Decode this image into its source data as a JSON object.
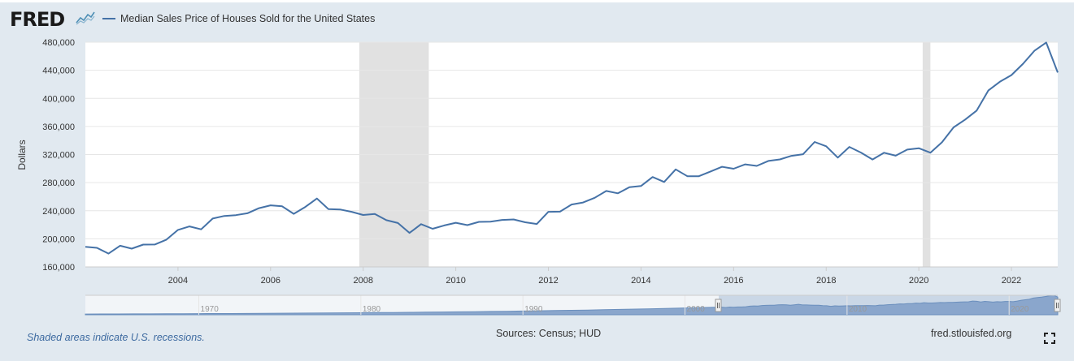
{
  "brand": {
    "logo_text": "FRED",
    "logo_icon": "fred-graph-icon"
  },
  "footer": {
    "note": "Shaded areas indicate U.S. recessions.",
    "sources": "Sources: Census; HUD",
    "site": "fred.stlouisfed.org",
    "expand_icon": "expand-fullscreen-icon"
  },
  "colors": {
    "line": "#4572a7",
    "recession": "#e1e1e1",
    "background": "#e1e9f0",
    "plot": "#ffffff",
    "grid": "#e6e6e6"
  },
  "chart_data": {
    "type": "line",
    "title": "",
    "xlabel": "",
    "ylabel": "Dollars",
    "legend": [
      "Median Sales Price of Houses Sold for the United States"
    ],
    "legend_position": "top-left",
    "grid": true,
    "xlim": [
      2002.0,
      2023.0
    ],
    "ylim": [
      160000,
      480000
    ],
    "xticks": [
      2004,
      2006,
      2008,
      2010,
      2012,
      2014,
      2016,
      2018,
      2020,
      2022
    ],
    "xtick_labels": [
      "2004",
      "2006",
      "2008",
      "2010",
      "2012",
      "2014",
      "2016",
      "2018",
      "2020",
      "2022"
    ],
    "yticks": [
      160000,
      200000,
      240000,
      280000,
      320000,
      360000,
      400000,
      440000,
      480000
    ],
    "ytick_labels": [
      "160,000",
      "200,000",
      "240,000",
      "280,000",
      "320,000",
      "360,000",
      "400,000",
      "440,000",
      "480,000"
    ],
    "recessions": [
      [
        2007.917,
        2009.417
      ],
      [
        2020.083,
        2020.25
      ]
    ],
    "series": [
      {
        "name": "Median Sales Price of Houses Sold for the United States",
        "x": [
          2002.0,
          2002.25,
          2002.5,
          2002.75,
          2003.0,
          2003.25,
          2003.5,
          2003.75,
          2004.0,
          2004.25,
          2004.5,
          2004.75,
          2005.0,
          2005.25,
          2005.5,
          2005.75,
          2006.0,
          2006.25,
          2006.5,
          2006.75,
          2007.0,
          2007.25,
          2007.5,
          2007.75,
          2008.0,
          2008.25,
          2008.5,
          2008.75,
          2009.0,
          2009.25,
          2009.5,
          2009.75,
          2010.0,
          2010.25,
          2010.5,
          2010.75,
          2011.0,
          2011.25,
          2011.5,
          2011.75,
          2012.0,
          2012.25,
          2012.5,
          2012.75,
          2013.0,
          2013.25,
          2013.5,
          2013.75,
          2014.0,
          2014.25,
          2014.5,
          2014.75,
          2015.0,
          2015.25,
          2015.5,
          2015.75,
          2016.0,
          2016.25,
          2016.5,
          2016.75,
          2017.0,
          2017.25,
          2017.5,
          2017.75,
          2018.0,
          2018.25,
          2018.5,
          2018.75,
          2019.0,
          2019.25,
          2019.5,
          2019.75,
          2020.0,
          2020.25,
          2020.5,
          2020.75,
          2021.0,
          2021.25,
          2021.5,
          2021.75,
          2022.0,
          2022.25,
          2022.5,
          2022.75,
          2023.0
        ],
        "values": [
          188700,
          187200,
          178900,
          190100,
          186000,
          191800,
          191900,
          198800,
          212700,
          217600,
          213500,
          228800,
          232500,
          233700,
          236400,
          243600,
          247700,
          246300,
          235600,
          245400,
          257400,
          242200,
          241800,
          238400,
          233900,
          235300,
          226500,
          222500,
          208400,
          220900,
          214300,
          219000,
          222900,
          219500,
          224100,
          224300,
          226900,
          227600,
          223500,
          221100,
          238400,
          238700,
          248800,
          251700,
          258400,
          268100,
          264800,
          273600,
          275200,
          288000,
          281000,
          298900,
          289200,
          289100,
          295800,
          302500,
          299800,
          306000,
          303800,
          310900,
          313100,
          318200,
          320500,
          337900,
          331800,
          315600,
          330900,
          322800,
          313000,
          322500,
          318400,
          327100,
          329000,
          322600,
          337500,
          358700,
          369800,
          382600,
          411200,
          423600,
          433100,
          449300,
          468000,
          479500,
          436800
        ]
      }
    ]
  },
  "navigator": {
    "tick_labels": [
      "1970",
      "1980",
      "1990",
      "2000",
      "2010",
      "2020"
    ],
    "handle_icon": "range-handle-icon"
  }
}
